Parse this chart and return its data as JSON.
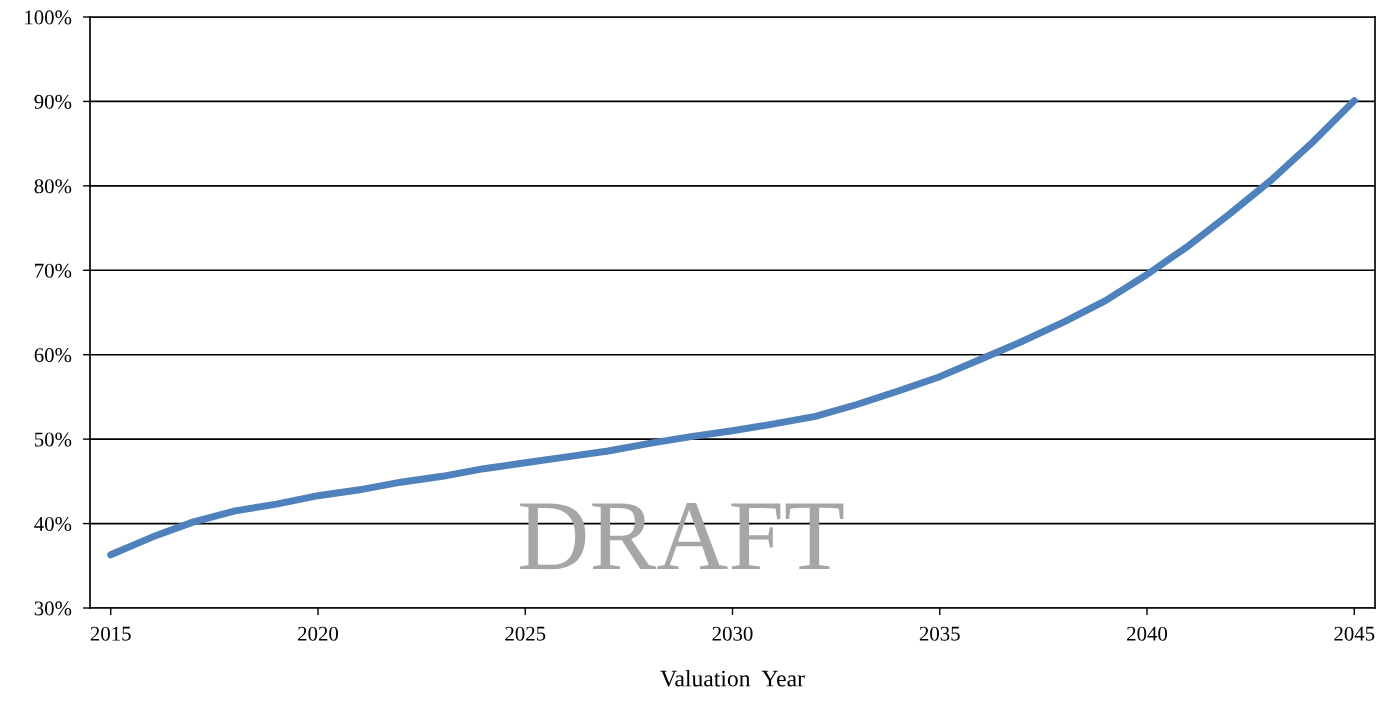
{
  "chart_data": {
    "type": "line",
    "xlabel": "Valuation  Year",
    "x": [
      2015,
      2016,
      2017,
      2018,
      2019,
      2020,
      2021,
      2022,
      2023,
      2024,
      2025,
      2026,
      2027,
      2028,
      2029,
      2030,
      2031,
      2032,
      2033,
      2034,
      2035,
      2036,
      2037,
      2038,
      2039,
      2040,
      2041,
      2042,
      2043,
      2044,
      2045
    ],
    "series": [
      {
        "color": "#4f81bd",
        "values": [
          36.3,
          38.4,
          40.2,
          41.5,
          42.3,
          43.3,
          44.0,
          44.9,
          45.6,
          46.5,
          47.2,
          47.9,
          48.6,
          49.5,
          50.3,
          51.0,
          51.8,
          52.7,
          54.1,
          55.7,
          57.4,
          59.5,
          61.6,
          63.9,
          66.4,
          69.5,
          72.9,
          76.7,
          80.7,
          85.2,
          90.1
        ]
      }
    ],
    "xlim": [
      2014.5,
      2045.5
    ],
    "xticks": [
      2015,
      2020,
      2025,
      2030,
      2035,
      2040,
      2045
    ],
    "ylim": [
      30,
      100
    ],
    "yticks": [
      {
        "value": 30,
        "label": "30%"
      },
      {
        "value": 40,
        "label": "40%"
      },
      {
        "value": 50,
        "label": "50%"
      },
      {
        "value": 60,
        "label": "60%"
      },
      {
        "value": 70,
        "label": "70%"
      },
      {
        "value": 80,
        "label": "80%"
      },
      {
        "value": 90,
        "label": "90%"
      },
      {
        "value": 100,
        "label": "100%"
      }
    ],
    "grid": "y",
    "marker": "none",
    "line_style": "solid",
    "annotations": [
      "DRAFT"
    ]
  }
}
